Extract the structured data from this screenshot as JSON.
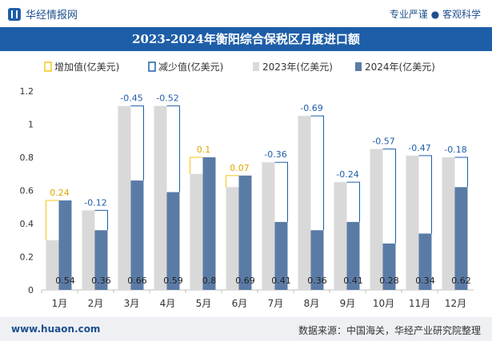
{
  "header": {
    "brand_name": "华经情报网",
    "slogan": "专业严谨 ● 客观科学"
  },
  "footer": {
    "website": "www.huaon.com",
    "source": "数据来源：中国海关，华经产业研究院整理"
  },
  "colors": {
    "increase": "#f5c518",
    "decrease": "#1e5ea8",
    "bar2023": "#d9d9d9",
    "bar2024": "#5a7ba6",
    "title_bg": "#1e5ea8"
  },
  "chart_data": {
    "type": "bar",
    "title": "2023-2024年衡阳综合保税区月度进口额",
    "categories": [
      "1月",
      "2月",
      "3月",
      "4月",
      "5月",
      "6月",
      "7月",
      "8月",
      "9月",
      "10月",
      "11月",
      "12月"
    ],
    "series": [
      {
        "name": "2023年(亿美元)",
        "values": [
          0.3,
          0.48,
          1.11,
          1.11,
          0.7,
          0.62,
          0.77,
          1.05,
          0.65,
          0.85,
          0.81,
          0.8
        ]
      },
      {
        "name": "2024年(亿美元)",
        "values": [
          0.54,
          0.36,
          0.66,
          0.59,
          0.8,
          0.69,
          0.41,
          0.36,
          0.41,
          0.28,
          0.34,
          0.62
        ]
      }
    ],
    "change_labels": [
      "0.24",
      "-0.12",
      "-0.45",
      "-0.52",
      "0.1",
      "0.07",
      "-0.36",
      "-0.69",
      "-0.24",
      "-0.57",
      "-0.47",
      "-0.18"
    ],
    "legend": [
      "增加值(亿美元)",
      "减少值(亿美元)",
      "2023年(亿美元)",
      "2024年(亿美元)"
    ],
    "legend_position": "top",
    "ylim": [
      0,
      1.2
    ],
    "yticks": [
      "0",
      "0.2",
      "0.4",
      "0.6",
      "0.8",
      "1",
      "1.2"
    ],
    "grid": false
  }
}
